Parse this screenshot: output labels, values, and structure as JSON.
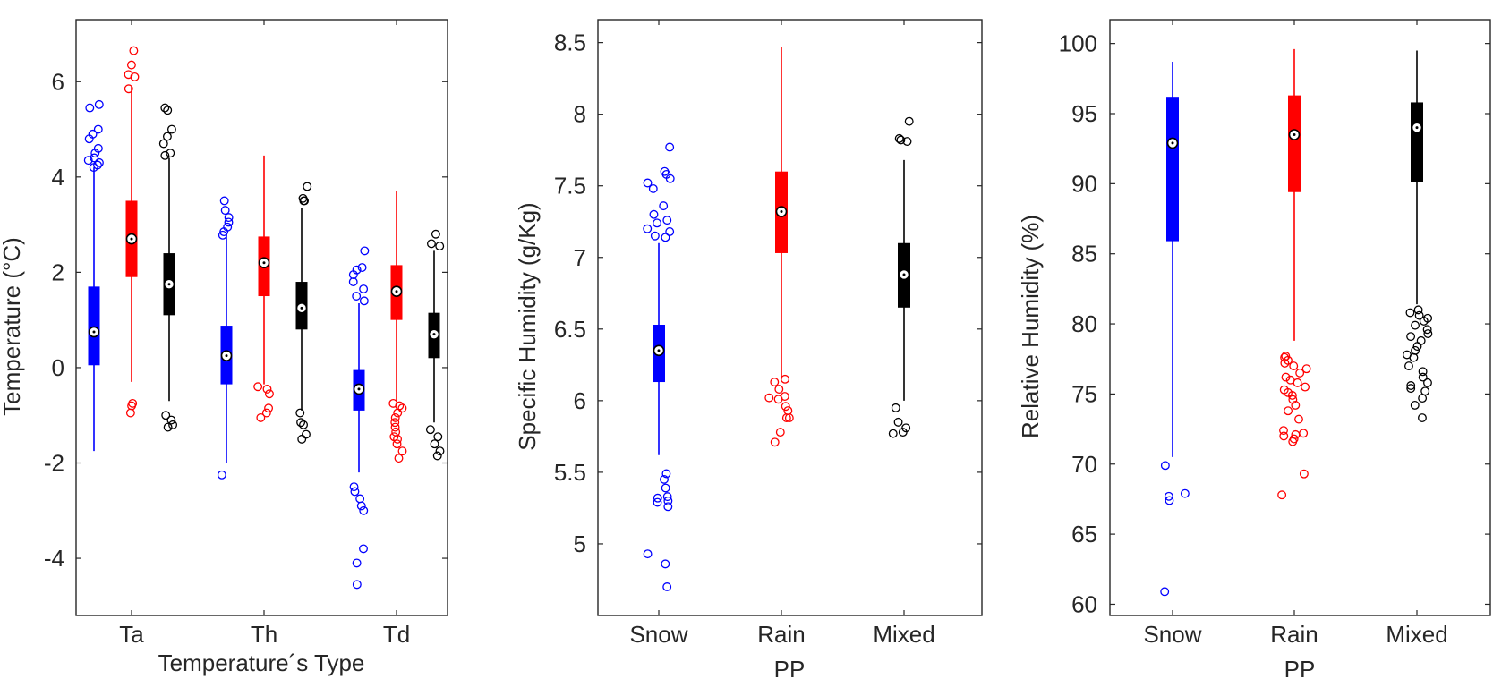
{
  "chart_data": [
    {
      "type": "box",
      "ylabel": "Temperature (°C)",
      "xlabel": "Temperature´s Type",
      "ylim": [
        -5.2,
        7.3
      ],
      "yticks": [
        -4,
        -2,
        0,
        2,
        4,
        6
      ],
      "ytick_labels": [
        "-4",
        "-2",
        "0",
        "2",
        "4",
        "6"
      ],
      "categories": [
        "Ta",
        "Th",
        "Td"
      ],
      "series": [
        {
          "name": "Snow",
          "color": "#0000ff",
          "boxes": [
            {
              "whisker_low": -1.75,
              "q1": 0.05,
              "median": 0.75,
              "q3": 1.7,
              "whisker_high": 4.2,
              "outliers": [
                4.2,
                4.25,
                4.3,
                4.35,
                4.4,
                4.5,
                4.6,
                4.8,
                4.9,
                5.0,
                5.45,
                5.52
              ]
            },
            {
              "whisker_low": -2.0,
              "q1": -0.35,
              "median": 0.25,
              "q3": 0.88,
              "whisker_high": 2.8,
              "outliers": [
                -2.25,
                2.78,
                2.85,
                2.95,
                3.05,
                3.15,
                3.3,
                3.5
              ]
            },
            {
              "whisker_low": -2.2,
              "q1": -0.9,
              "median": -0.45,
              "q3": -0.05,
              "whisker_high": 1.35,
              "outliers": [
                -4.55,
                -4.1,
                -3.8,
                -3.0,
                -2.9,
                -2.75,
                -2.6,
                -2.5,
                1.4,
                1.5,
                1.65,
                1.8,
                1.95,
                2.05,
                2.1,
                2.45
              ]
            }
          ]
        },
        {
          "name": "Rain",
          "color": "#ff0000",
          "boxes": [
            {
              "whisker_low": -0.3,
              "q1": 1.9,
              "median": 2.7,
              "q3": 3.5,
              "whisker_high": 5.9,
              "outliers": [
                -0.95,
                -0.8,
                -0.75,
                5.85,
                6.1,
                6.15,
                6.35,
                6.65
              ]
            },
            {
              "whisker_low": -0.35,
              "q1": 1.5,
              "median": 2.2,
              "q3": 2.75,
              "whisker_high": 4.45,
              "outliers": [
                -1.05,
                -0.95,
                -0.85,
                -0.55,
                -0.45,
                -0.4
              ]
            },
            {
              "whisker_low": -0.7,
              "q1": 1.0,
              "median": 1.6,
              "q3": 2.15,
              "whisker_high": 3.7,
              "outliers": [
                -1.9,
                -1.75,
                -1.6,
                -1.5,
                -1.45,
                -1.35,
                -1.25,
                -1.15,
                -1.05,
                -0.95,
                -0.85,
                -0.8,
                -0.75
              ]
            }
          ]
        },
        {
          "name": "Mixed",
          "color": "#000000",
          "boxes": [
            {
              "whisker_low": -0.7,
              "q1": 1.1,
              "median": 1.75,
              "q3": 2.4,
              "whisker_high": 4.4,
              "outliers": [
                -1.25,
                -1.2,
                -1.1,
                -1.0,
                4.45,
                4.5,
                4.7,
                4.85,
                5.0,
                5.4,
                5.45
              ]
            },
            {
              "whisker_low": -0.9,
              "q1": 0.8,
              "median": 1.25,
              "q3": 1.8,
              "whisker_high": 3.35,
              "outliers": [
                -1.5,
                -1.4,
                -1.2,
                -1.15,
                -0.95,
                3.5,
                3.5,
                3.55,
                3.8
              ]
            },
            {
              "whisker_low": -1.15,
              "q1": 0.2,
              "median": 0.7,
              "q3": 1.15,
              "whisker_high": 2.45,
              "outliers": [
                -1.85,
                -1.75,
                -1.6,
                -1.45,
                -1.3,
                2.55,
                2.6,
                2.8
              ]
            }
          ]
        }
      ]
    },
    {
      "type": "box",
      "ylabel": "Specific Humidity (g/Kg)",
      "xlabel": "PP",
      "ylim": [
        4.5,
        8.66
      ],
      "yticks": [
        5,
        5.5,
        6,
        6.5,
        7,
        7.5,
        8,
        8.5
      ],
      "ytick_labels": [
        "5",
        "5.5",
        "6",
        "6.5",
        "7",
        "7.5",
        "8",
        "8.5"
      ],
      "categories": [
        "Snow",
        "Rain",
        "Mixed"
      ],
      "boxes": [
        {
          "color": "#0000ff",
          "whisker_low": 5.62,
          "q1": 6.13,
          "median": 6.35,
          "q3": 6.53,
          "whisker_high": 7.1,
          "outliers": [
            4.7,
            4.86,
            4.93,
            5.26,
            5.29,
            5.3,
            5.32,
            5.33,
            5.39,
            5.45,
            5.49,
            7.14,
            7.15,
            7.18,
            7.2,
            7.24,
            7.26,
            7.3,
            7.36,
            7.48,
            7.52,
            7.55,
            7.58,
            7.6,
            7.77
          ]
        },
        {
          "color": "#ff0000",
          "whisker_low": 6.15,
          "q1": 7.03,
          "median": 7.32,
          "q3": 7.6,
          "whisker_high": 8.47,
          "outliers": [
            5.71,
            5.78,
            5.88,
            5.88,
            5.93,
            5.96,
            6.01,
            6.02,
            6.03,
            6.08,
            6.13,
            6.15
          ]
        },
        {
          "color": "#000000",
          "whisker_low": 6.0,
          "q1": 6.65,
          "median": 6.88,
          "q3": 7.1,
          "whisker_high": 7.68,
          "outliers": [
            5.77,
            5.78,
            5.81,
            5.85,
            5.95,
            7.81,
            7.82,
            7.83,
            7.95
          ]
        }
      ]
    },
    {
      "type": "box",
      "ylabel": "Relative Humidity (%)",
      "xlabel": "PP",
      "ylim": [
        59.2,
        101.7
      ],
      "yticks": [
        60,
        65,
        70,
        75,
        80,
        85,
        90,
        95,
        100
      ],
      "ytick_labels": [
        "60",
        "65",
        "70",
        "75",
        "80",
        "85",
        "90",
        "95",
        "100"
      ],
      "categories": [
        "Snow",
        "Rain",
        "Mixed"
      ],
      "boxes": [
        {
          "color": "#0000ff",
          "whisker_low": 70.5,
          "q1": 85.9,
          "median": 92.9,
          "q3": 96.2,
          "whisker_high": 98.7,
          "outliers": [
            60.9,
            67.4,
            67.7,
            67.9,
            69.9
          ]
        },
        {
          "color": "#ff0000",
          "whisker_low": 78.8,
          "q1": 89.4,
          "median": 93.5,
          "q3": 96.3,
          "whisker_high": 99.6,
          "outliers": [
            67.8,
            69.3,
            71.6,
            71.8,
            72.0,
            72.1,
            72.2,
            72.4,
            73.2,
            73.8,
            74.2,
            74.6,
            74.9,
            75.1,
            75.3,
            75.5,
            75.8,
            76.0,
            76.2,
            76.5,
            76.8,
            77.0,
            77.2,
            77.4,
            77.6,
            77.7
          ]
        },
        {
          "color": "#000000",
          "whisker_low": 81.4,
          "q1": 90.1,
          "median": 94.0,
          "q3": 95.8,
          "whisker_high": 99.5,
          "outliers": [
            73.3,
            74.2,
            74.7,
            75.2,
            75.4,
            75.6,
            75.8,
            76.2,
            76.6,
            77.0,
            77.6,
            77.8,
            78.1,
            78.4,
            78.8,
            79.1,
            79.3,
            79.6,
            79.9,
            80.2,
            80.4,
            80.6,
            80.8,
            81.0
          ]
        }
      ]
    }
  ]
}
